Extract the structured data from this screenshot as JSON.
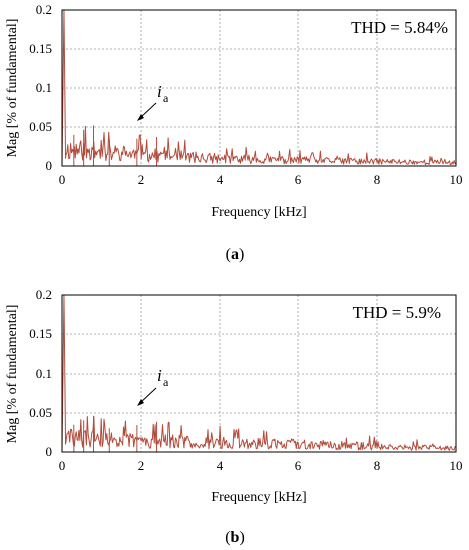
{
  "colors": {
    "spectrum": "#b34a3a",
    "grid": "#9a9a9a",
    "axis": "#000000"
  },
  "chart_data": [
    {
      "type": "line",
      "panel_label": "(a)",
      "annotation_box": "THD = 5.84%",
      "trace_label": {
        "base": "i",
        "subscript": "a"
      },
      "xlabel": "Frequency [kHz]",
      "ylabel": "Mag [% of fundamental]",
      "xlim": [
        0,
        10
      ],
      "ylim": [
        0,
        0.2
      ],
      "xticks": [
        "0",
        "2",
        "4",
        "6",
        "8",
        "10"
      ],
      "yticks": [
        "0",
        "0.05",
        "0.1",
        "0.15",
        "0.2"
      ],
      "grid": true,
      "fundamental_peak": {
        "x": 0.05,
        "y": 0.2
      },
      "noise_envelope": [
        {
          "x": 0.0,
          "y": 0.03
        },
        {
          "x": 1.0,
          "y": 0.025
        },
        {
          "x": 2.0,
          "y": 0.02
        },
        {
          "x": 4.0,
          "y": 0.013
        },
        {
          "x": 6.0,
          "y": 0.01
        },
        {
          "x": 8.0,
          "y": 0.008
        },
        {
          "x": 10.0,
          "y": 0.006
        }
      ]
    },
    {
      "type": "line",
      "panel_label": "(b)",
      "annotation_box": "THD = 5.9%",
      "trace_label": {
        "base": "i",
        "subscript": "a"
      },
      "xlabel": "Frequency [kHz]",
      "ylabel": "Mag [% of fundamental]",
      "xlim": [
        0,
        10
      ],
      "ylim": [
        0,
        0.2
      ],
      "xticks": [
        "0",
        "2",
        "4",
        "6",
        "8",
        "10"
      ],
      "yticks": [
        "0",
        "0.05",
        "0.1",
        "0.15",
        "0.2"
      ],
      "grid": true,
      "fundamental_peak": {
        "x": 0.05,
        "y": 0.2
      },
      "noise_envelope": [
        {
          "x": 0.0,
          "y": 0.026
        },
        {
          "x": 1.0,
          "y": 0.022
        },
        {
          "x": 2.0,
          "y": 0.02
        },
        {
          "x": 4.0,
          "y": 0.016
        },
        {
          "x": 6.0,
          "y": 0.014
        },
        {
          "x": 8.0,
          "y": 0.01
        },
        {
          "x": 10.0,
          "y": 0.006
        }
      ]
    }
  ]
}
